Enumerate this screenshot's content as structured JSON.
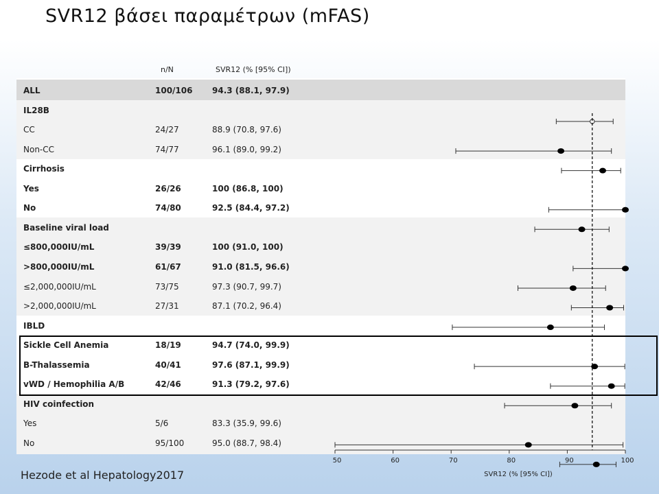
{
  "title": "SVR12 βάσει παραμέτρων (mFAS)",
  "reference": "Hezode et al Hepatology2017",
  "columns": {
    "n": "n/N",
    "svr": "SVR12 (% [95% CI])"
  },
  "chart_data": {
    "type": "forest",
    "xlabel": "SVR12 (% [95% CI])",
    "xlim": [
      50,
      100
    ],
    "xticks": [
      50,
      60,
      70,
      80,
      90,
      100
    ],
    "reference_line": 94.3,
    "rows": [
      {
        "label": "ALL",
        "n": "100/106",
        "svr": "94.3 (88.1, 97.9)",
        "style": "bold",
        "point": 94.3,
        "lo": 88.1,
        "hi": 97.9,
        "marker": "open"
      },
      {
        "label": "IL28B",
        "n": "",
        "svr": "",
        "style": "section"
      },
      {
        "label": "CC",
        "n": "24/27",
        "svr": "88.9 (70.8, 97.6)",
        "style": "normal",
        "point": 88.9,
        "lo": 70.8,
        "hi": 97.6,
        "marker": "filled"
      },
      {
        "label": "Non-CC",
        "n": "74/77",
        "svr": "96.1 (89.0, 99.2)",
        "style": "normal",
        "point": 96.1,
        "lo": 89.0,
        "hi": 99.2,
        "marker": "filled"
      },
      {
        "label": "Cirrhosis",
        "n": "",
        "svr": "",
        "style": "section"
      },
      {
        "label": "Yes",
        "n": "26/26",
        "svr": "100 (86.8, 100)",
        "style": "bold",
        "point": 100,
        "lo": 86.8,
        "hi": 100,
        "marker": "filled"
      },
      {
        "label": "No",
        "n": "74/80",
        "svr": "92.5 (84.4, 97.2)",
        "style": "bold",
        "point": 92.5,
        "lo": 84.4,
        "hi": 97.2,
        "marker": "filled"
      },
      {
        "label": "Baseline viral load",
        "n": "",
        "svr": "",
        "style": "section"
      },
      {
        "label": "≤800,000IU/mL",
        "n": "39/39",
        "svr": "100 (91.0, 100)",
        "style": "bold",
        "point": 100,
        "lo": 91.0,
        "hi": 100,
        "marker": "filled"
      },
      {
        "label": ">800,000IU/mL",
        "n": "61/67",
        "svr": "91.0 (81.5, 96.6)",
        "style": "bold",
        "point": 91.0,
        "lo": 81.5,
        "hi": 96.6,
        "marker": "filled"
      },
      {
        "label": "≤2,000,000IU/mL",
        "n": "73/75",
        "svr": "97.3 (90.7, 99.7)",
        "style": "normal",
        "point": 97.3,
        "lo": 90.7,
        "hi": 99.7,
        "marker": "filled"
      },
      {
        "label": ">2,000,000IU/mL",
        "n": "27/31",
        "svr": "87.1 (70.2, 96.4)",
        "style": "normal",
        "point": 87.1,
        "lo": 70.2,
        "hi": 96.4,
        "marker": "filled"
      },
      {
        "label": "IBLD",
        "n": "",
        "svr": "",
        "style": "section"
      },
      {
        "label": "Sickle Cell Anemia",
        "n": "18/19",
        "svr": "94.7 (74.0, 99.9)",
        "style": "bold",
        "point": 94.7,
        "lo": 74.0,
        "hi": 99.9,
        "marker": "filled"
      },
      {
        "label": "B-Thalassemia",
        "n": "40/41",
        "svr": "97.6 (87.1, 99.9)",
        "style": "bold",
        "point": 97.6,
        "lo": 87.1,
        "hi": 99.9,
        "marker": "filled"
      },
      {
        "label": "vWD / Hemophilia A/B",
        "n": "42/46",
        "svr": "91.3 (79.2, 97.6)",
        "style": "bold",
        "point": 91.3,
        "lo": 79.2,
        "hi": 97.6,
        "marker": "filled"
      },
      {
        "label": "HIV coinfection",
        "n": "",
        "svr": "",
        "style": "section"
      },
      {
        "label": "Yes",
        "n": "5/6",
        "svr": "83.3 (35.9, 99.6)",
        "style": "normal",
        "point": 83.3,
        "lo": 50,
        "hi": 99.6,
        "marker": "filled"
      },
      {
        "label": "No",
        "n": "95/100",
        "svr": "95.0 (88.7, 98.4)",
        "style": "normal",
        "point": 95.0,
        "lo": 88.7,
        "hi": 98.4,
        "marker": "filled"
      }
    ]
  }
}
